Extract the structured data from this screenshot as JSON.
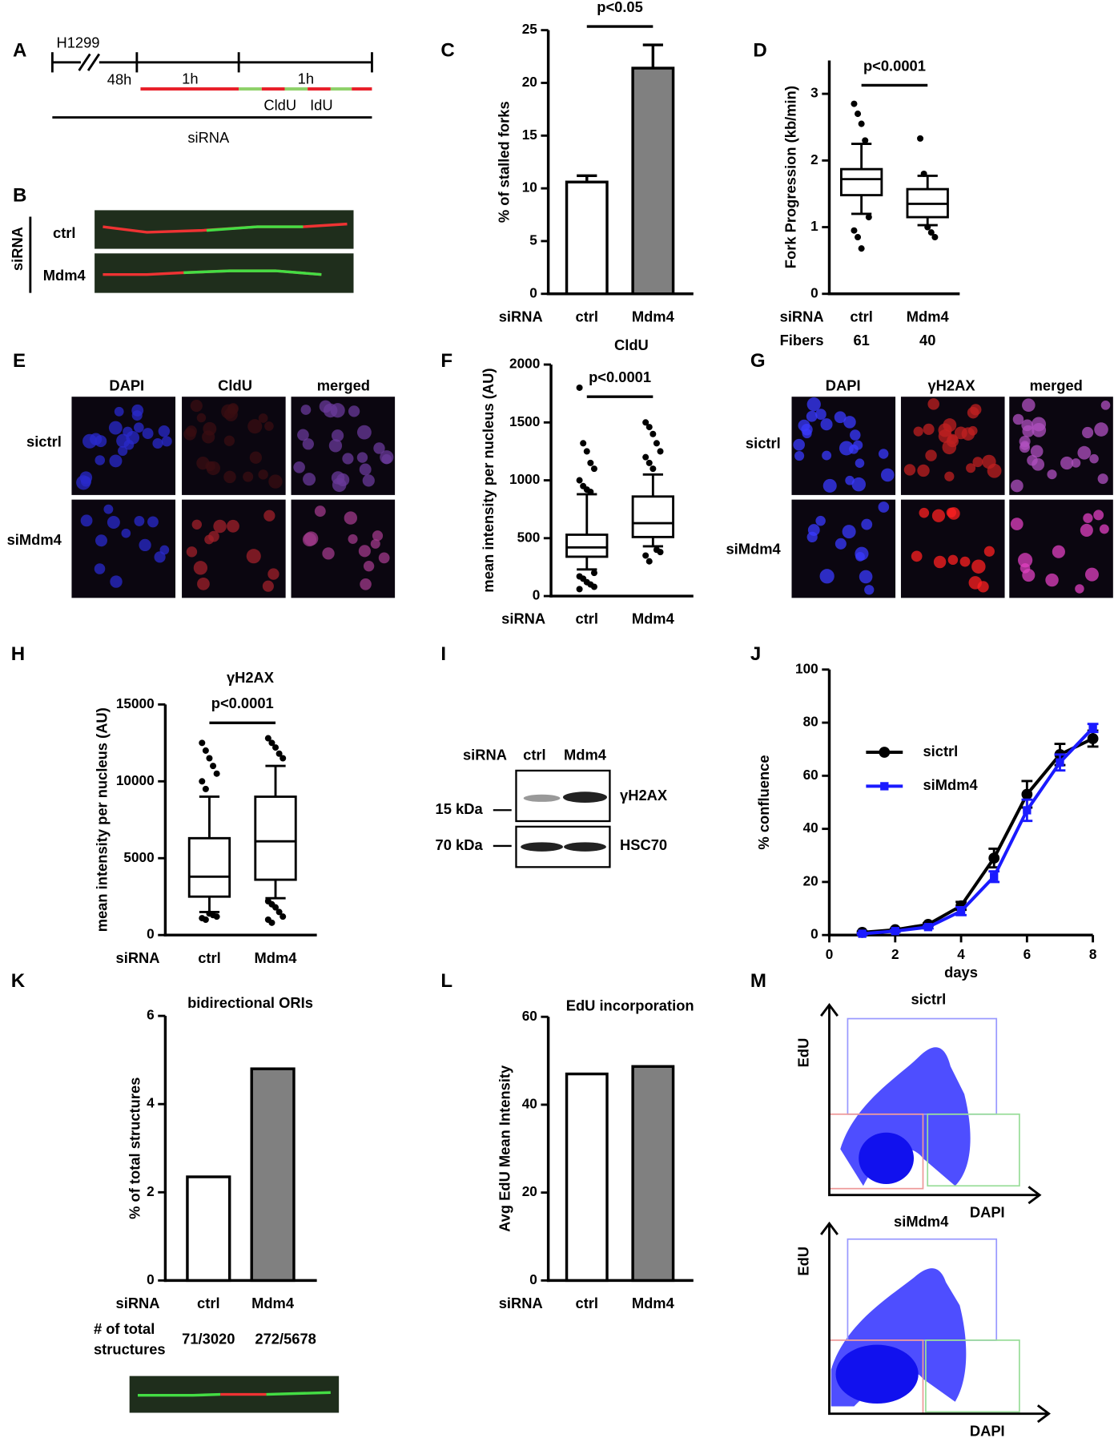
{
  "figure": {
    "letters": [
      "A",
      "B",
      "E",
      "G",
      "I",
      "M"
    ],
    "timeline": {
      "cell": "H1299",
      "t1": "48h",
      "t2": "1h",
      "t3": "1h",
      "l1": "CldU",
      "l2": "IdU",
      "sirna": "siRNA"
    },
    "fibers": {
      "side": "siRNA",
      "rows": [
        "ctrl",
        "Mdm4"
      ]
    },
    "imaging_e": {
      "columns": [
        "DAPI",
        "CldU",
        "merged"
      ],
      "rows": [
        "sictrl",
        "siMdm4"
      ]
    },
    "imaging_g": {
      "columns": [
        "DAPI",
        "γH2AX",
        "merged"
      ],
      "rows": [
        "sictrl",
        "siMdm4"
      ]
    },
    "blot": {
      "header": "siRNA",
      "lanes": [
        "ctrl",
        "Mdm4"
      ],
      "markers": [
        "15 kDa",
        "70 kDa"
      ],
      "bands": [
        "γH2AX",
        "HSC70"
      ]
    },
    "flow": [
      {
        "title": "sictrl",
        "y": "EdU",
        "x": "DAPI"
      },
      {
        "title": "siMdm4",
        "y": "EdU",
        "x": "DAPI"
      }
    ]
  },
  "chart_data": [
    {
      "panel": "C",
      "type": "bar",
      "y_label": "% of stalled forks",
      "x_label": "siRNA",
      "categories": [
        "ctrl",
        "Mdm4"
      ],
      "values": [
        10.6,
        21.4
      ],
      "errors": [
        0.6,
        2.2
      ],
      "colors": [
        "#ffffff",
        "#808080"
      ],
      "ylim": [
        0,
        25
      ],
      "yticks": [
        0,
        5,
        10,
        15,
        20,
        25
      ],
      "annotation": "p<0.05"
    },
    {
      "panel": "D",
      "type": "box",
      "y_label": "Fork Progression (kb/min)",
      "x_label": "siRNA",
      "categories": [
        "ctrl",
        "Mdm4"
      ],
      "boxes": [
        {
          "whislo": 1.2,
          "q1": 1.48,
          "med": 1.72,
          "q3": 1.87,
          "whishi": 2.25,
          "fliers": [
            2.85,
            2.7,
            2.55,
            2.3,
            1.15,
            0.95,
            0.85,
            0.68
          ]
        },
        {
          "whislo": 1.03,
          "q1": 1.15,
          "med": 1.35,
          "q3": 1.57,
          "whishi": 1.77,
          "fliers": [
            2.33,
            1.8,
            1.0,
            0.92,
            0.85
          ]
        }
      ],
      "ylim": [
        0,
        3.5
      ],
      "yticks": [
        0,
        1,
        2,
        3
      ],
      "annotation": "p<0.0001",
      "n_label": [
        "Fibers"
      ],
      "n": [
        61,
        40
      ]
    },
    {
      "panel": "F",
      "type": "box",
      "title": "CldU",
      "y_label": "mean intensity per nucleus (AU)",
      "x_label": "siRNA",
      "categories": [
        "ctrl",
        "Mdm4"
      ],
      "boxes": [
        {
          "whislo": 230,
          "q1": 340,
          "med": 420,
          "q3": 530,
          "whishi": 880,
          "fliers": [
            1800,
            1320,
            1250,
            1150,
            1100,
            1000,
            950,
            920,
            900,
            200,
            170,
            150,
            120,
            100,
            80,
            60
          ]
        },
        {
          "whislo": 430,
          "q1": 510,
          "med": 630,
          "q3": 860,
          "whishi": 1050,
          "fliers": [
            1500,
            1460,
            1400,
            1320,
            1250,
            1200,
            1150,
            1100,
            400,
            380,
            350,
            300
          ]
        }
      ],
      "ylim": [
        0,
        2000
      ],
      "yticks": [
        0,
        500,
        1000,
        1500,
        2000
      ],
      "annotation": "p<0.0001"
    },
    {
      "panel": "H",
      "type": "box",
      "title": "γH2AX",
      "y_label": "mean intensity per nucleus (AU)",
      "x_label": "siRNA",
      "categories": [
        "ctrl",
        "Mdm4"
      ],
      "boxes": [
        {
          "whislo": 1500,
          "q1": 2500,
          "med": 3800,
          "q3": 6300,
          "whishi": 9000,
          "fliers": [
            12500,
            12000,
            11500,
            11000,
            10500,
            10000,
            9500,
            1400,
            1300,
            1200,
            1100,
            1000
          ]
        },
        {
          "whislo": 2400,
          "q1": 3600,
          "med": 6100,
          "q3": 9000,
          "whishi": 11000,
          "fliers": [
            12800,
            12500,
            12200,
            11800,
            11500,
            2200,
            2000,
            1800,
            1500,
            1200,
            1000,
            800
          ]
        }
      ],
      "ylim": [
        0,
        15000
      ],
      "yticks": [
        0,
        5000,
        10000,
        15000
      ],
      "annotation": "p<0.0001"
    },
    {
      "panel": "J",
      "type": "line",
      "y_label": "% confluence",
      "x_label": "days",
      "x": [
        1,
        2,
        3,
        4,
        5,
        6,
        7,
        8
      ],
      "series": [
        {
          "name": "sictrl",
          "color": "#000000",
          "values": [
            1,
            2,
            4,
            11,
            29,
            53,
            68,
            74
          ],
          "errors": [
            0.3,
            0.3,
            0.5,
            1.5,
            3.5,
            5,
            4,
            3
          ]
        },
        {
          "name": "siMdm4",
          "color": "#1a1aff",
          "values": [
            0.5,
            1.5,
            3,
            9,
            22,
            47,
            65,
            78
          ],
          "errors": [
            0.3,
            0.3,
            0.5,
            1.5,
            2,
            4,
            3,
            1.5
          ]
        }
      ],
      "xlim": [
        0,
        8
      ],
      "xticks": [
        0,
        2,
        4,
        6,
        8
      ],
      "ylim": [
        0,
        100
      ],
      "yticks": [
        0,
        20,
        40,
        60,
        80,
        100
      ]
    },
    {
      "panel": "K",
      "type": "bar",
      "title": "bidirectional ORIs",
      "y_label": "% of total structures",
      "x_label": "siRNA",
      "categories": [
        "ctrl",
        "Mdm4"
      ],
      "values": [
        2.35,
        4.8
      ],
      "colors": [
        "#ffffff",
        "#808080"
      ],
      "ylim": [
        0,
        6
      ],
      "yticks": [
        0,
        2,
        4,
        6
      ],
      "n_label": [
        "# of total",
        "structures"
      ],
      "n": [
        "71/3020",
        "272/5678"
      ]
    },
    {
      "panel": "L",
      "type": "bar",
      "title": "EdU incorporation",
      "y_label": "Avg EdU Mean Intensity",
      "x_label": "siRNA",
      "categories": [
        "ctrl",
        "Mdm4"
      ],
      "values": [
        47,
        48.7
      ],
      "colors": [
        "#ffffff",
        "#808080"
      ],
      "ylim": [
        0,
        60
      ],
      "yticks": [
        0,
        20,
        40,
        60
      ]
    }
  ]
}
